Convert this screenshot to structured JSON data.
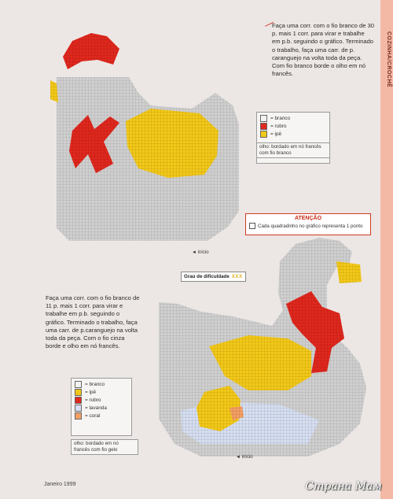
{
  "side_label": "COZINHA/CROCHÊ",
  "instructions_top": "Faça uma corr. com o fio branco de 30 p. mais 1 corr. para virar e trabalhe em p.b. seguindo o gráfico. Terminado o trabalho, faça uma carr. de p. caranguejo na volta toda da peça. Com fio branco borde o olho em nó francês.",
  "instructions_bottom": "Faça uma corr. com o fio branco de 11 p. mais 1 corr. para virar e trabalhe em p.b. seguindo o gráfico. Terminado o trabalho, faça uma carr. de p.caranguejo na volta toda da peça. Com o fio cinza borde e olho em nó francês.",
  "legend_top": [
    {
      "label": "= branco",
      "color": "#f4f4f4"
    },
    {
      "label": "= rubro",
      "color": "#e0281e"
    },
    {
      "label": "= ipê",
      "color": "#f2c81a"
    }
  ],
  "note_top": "olho: bordado em nó francês com fio branco",
  "legend_bottom": [
    {
      "label": "= branco",
      "color": "#f4f4f4"
    },
    {
      "label": "= ipê",
      "color": "#f2c81a"
    },
    {
      "label": "= rubro",
      "color": "#e0281e"
    },
    {
      "label": "= lavanda",
      "color": "#d7dff0"
    },
    {
      "label": "= coral",
      "color": "#f4a064"
    }
  ],
  "note_bottom": "olho: bordado em nó francês com fio gelo",
  "attention": {
    "title": "ATENÇÃO",
    "body": "Cada quadradinho no gráfico representa 1 ponto"
  },
  "difficulty": {
    "label": "Grau de dificuldade",
    "marks": "XXX"
  },
  "start_label_top": "início",
  "start_label_bottom": "início",
  "footer": "Janeiro 1999",
  "watermark": "Страна Мам",
  "colors": {
    "grid_gray": "#c9c9c9",
    "red": "#e0281e",
    "yellow": "#f2c81a",
    "orange": "#f4a064",
    "accent": "#f4b9a4"
  }
}
